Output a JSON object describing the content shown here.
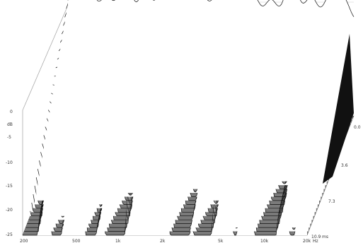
{
  "chart_data": {
    "type": "waterfall",
    "y_axis": {
      "unit": "dB",
      "ticks": [
        "0",
        "-5",
        "-10",
        "-15",
        "-20",
        "-25"
      ],
      "range": [
        -25,
        0
      ]
    },
    "x_axis": {
      "unit": "Hz",
      "ticks": [
        "200",
        "500",
        "1k",
        "2k",
        "5k",
        "10k",
        "20k"
      ],
      "scale": "log",
      "range": [
        200,
        20000
      ]
    },
    "z_axis": {
      "unit": "ms",
      "ticks": [
        "0.0",
        "3.6",
        "7.3",
        "10.9"
      ],
      "range": [
        0,
        10.9
      ]
    },
    "slices": 32,
    "floor_level_db": -25
  },
  "colors": {
    "floor": "#7a7a7a",
    "floor_edge": "#5c5c5c",
    "curve": "#111111",
    "fill": "#ffffff",
    "axis": "#aaaaaa",
    "side": "#111111"
  }
}
